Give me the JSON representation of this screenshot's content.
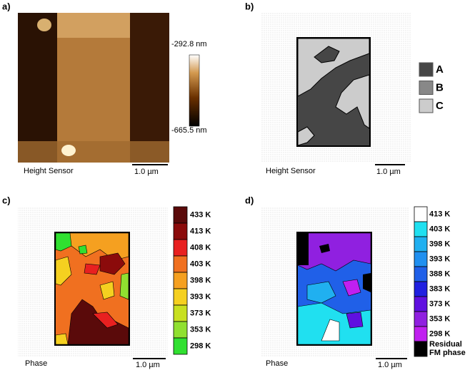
{
  "panels": [
    {
      "label": "a)",
      "caption": "Height Sensor",
      "scale_bar": "1.0 µm",
      "colorbar": {
        "max": "-292.8 nm",
        "min": "-665.5 nm"
      }
    },
    {
      "label": "b)",
      "caption": "Height Sensor",
      "scale_bar": "1.0 µm",
      "legend": [
        {
          "name": "A",
          "color": "#464646"
        },
        {
          "name": "B",
          "color": "#888888"
        },
        {
          "name": "C",
          "color": "#cccccc"
        }
      ]
    },
    {
      "label": "c)",
      "caption": "Phase",
      "scale_bar": "1.0 µm",
      "legend": [
        {
          "name": "433 K",
          "color": "#5a0a0a"
        },
        {
          "name": "413 K",
          "color": "#8b0b0b"
        },
        {
          "name": "408 K",
          "color": "#e82020"
        },
        {
          "name": "403 K",
          "color": "#f07020"
        },
        {
          "name": "398 K",
          "color": "#f5a020"
        },
        {
          "name": "393 K",
          "color": "#f5d020"
        },
        {
          "name": "373 K",
          "color": "#c8e020"
        },
        {
          "name": "353 K",
          "color": "#90e030"
        },
        {
          "name": "298 K",
          "color": "#30e030"
        }
      ]
    },
    {
      "label": "d)",
      "caption": "Phase",
      "scale_bar": "1.0 µm",
      "legend": [
        {
          "name": "413 K",
          "color": "#ffffff"
        },
        {
          "name": "403 K",
          "color": "#20e0f0"
        },
        {
          "name": "398 K",
          "color": "#20b0f0"
        },
        {
          "name": "393 K",
          "color": "#2090f0"
        },
        {
          "name": "388 K",
          "color": "#2060e8"
        },
        {
          "name": "383 K",
          "color": "#2020e0"
        },
        {
          "name": "373 K",
          "color": "#6010e0"
        },
        {
          "name": "353 K",
          "color": "#9020e0"
        },
        {
          "name": "298 K",
          "color": "#c020f0"
        },
        {
          "name": [
            "Residual",
            "FM phase"
          ],
          "color": "#000000"
        }
      ]
    }
  ]
}
